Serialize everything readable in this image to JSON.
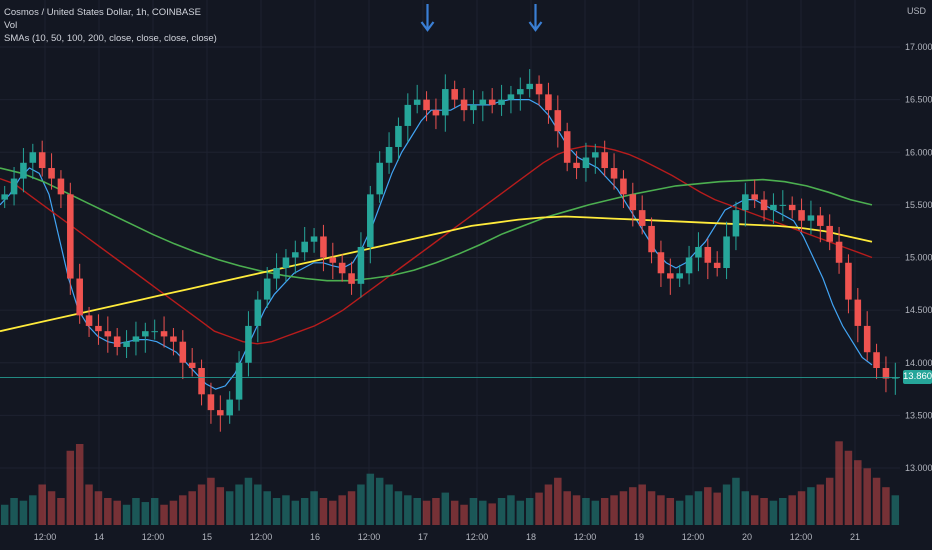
{
  "legend": {
    "symbol": "Cosmos / United States Dollar, 1h, COINBASE",
    "vol": "Vol",
    "smas": "SMAs (10, 50, 100, 200, close, close, close, close)"
  },
  "axis": {
    "currency": "USD",
    "last_price": "13.860"
  },
  "colors": {
    "background": "#131722",
    "up": "#26a69a",
    "down": "#ef5350",
    "sma10": "#42a5f5",
    "sma50": "#b71c1c",
    "sma100": "#4caf50",
    "sma200": "#ffeb3b",
    "arrow": "#3a7fd5"
  },
  "annotations": [
    {
      "type": "arrow-down",
      "x": 47.5,
      "y": 17.08
    },
    {
      "type": "arrow-down",
      "x": 59.5,
      "y": 17.08
    }
  ],
  "chart_data": {
    "type": "candlestick",
    "x_ticks": [
      {
        "x": 5,
        "label": "12:00"
      },
      {
        "x": 11,
        "label": "14"
      },
      {
        "x": 17,
        "label": "12:00"
      },
      {
        "x": 23,
        "label": "15"
      },
      {
        "x": 29,
        "label": "12:00"
      },
      {
        "x": 35,
        "label": "16"
      },
      {
        "x": 41,
        "label": "12:00"
      },
      {
        "x": 47,
        "label": "17"
      },
      {
        "x": 53,
        "label": "12:00"
      },
      {
        "x": 59,
        "label": "18"
      },
      {
        "x": 65,
        "label": "12:00"
      },
      {
        "x": 71,
        "label": "19"
      },
      {
        "x": 77,
        "label": "12:00"
      },
      {
        "x": 83,
        "label": "20"
      },
      {
        "x": 89,
        "label": "12:00"
      },
      {
        "x": 95,
        "label": "21"
      }
    ],
    "y_ticks": [
      13.0,
      13.5,
      14.0,
      14.5,
      15.0,
      15.5,
      16.0,
      16.5,
      17.0
    ],
    "ylim": [
      12.9,
      17.2
    ],
    "xlim": [
      0,
      100
    ],
    "last_price": 13.86,
    "candles_close": [
      15.6,
      15.75,
      15.9,
      16.0,
      15.85,
      15.75,
      15.6,
      14.8,
      14.45,
      14.35,
      14.3,
      14.25,
      14.15,
      14.2,
      14.25,
      14.3,
      14.3,
      14.25,
      14.2,
      14.0,
      13.95,
      13.7,
      13.55,
      13.5,
      13.65,
      14.0,
      14.35,
      14.6,
      14.8,
      14.9,
      15.0,
      15.05,
      15.15,
      15.2,
      15.0,
      14.95,
      14.85,
      14.75,
      15.1,
      15.6,
      15.9,
      16.05,
      16.25,
      16.45,
      16.5,
      16.4,
      16.35,
      16.6,
      16.5,
      16.4,
      16.45,
      16.5,
      16.45,
      16.5,
      16.55,
      16.6,
      16.65,
      16.55,
      16.4,
      16.2,
      15.9,
      15.85,
      15.95,
      16.0,
      15.85,
      15.75,
      15.6,
      15.45,
      15.3,
      15.05,
      14.85,
      14.8,
      14.85,
      15.0,
      15.1,
      14.95,
      14.9,
      15.2,
      15.45,
      15.6,
      15.55,
      15.45,
      15.5,
      15.5,
      15.45,
      15.35,
      15.4,
      15.3,
      15.15,
      14.95,
      14.6,
      14.35,
      14.1,
      13.95,
      13.85,
      13.86
    ],
    "volume_range": [
      0,
      1
    ],
    "volumes": [
      0.15,
      0.2,
      0.18,
      0.22,
      0.3,
      0.25,
      0.2,
      0.55,
      0.6,
      0.3,
      0.25,
      0.2,
      0.18,
      0.15,
      0.2,
      0.17,
      0.2,
      0.15,
      0.18,
      0.22,
      0.25,
      0.3,
      0.35,
      0.28,
      0.25,
      0.3,
      0.35,
      0.3,
      0.25,
      0.2,
      0.22,
      0.18,
      0.2,
      0.25,
      0.2,
      0.18,
      0.22,
      0.25,
      0.3,
      0.38,
      0.35,
      0.3,
      0.25,
      0.22,
      0.2,
      0.18,
      0.2,
      0.24,
      0.18,
      0.15,
      0.2,
      0.18,
      0.16,
      0.2,
      0.22,
      0.18,
      0.2,
      0.24,
      0.3,
      0.35,
      0.25,
      0.22,
      0.2,
      0.18,
      0.2,
      0.22,
      0.25,
      0.28,
      0.3,
      0.25,
      0.22,
      0.2,
      0.18,
      0.22,
      0.25,
      0.28,
      0.24,
      0.3,
      0.35,
      0.25,
      0.22,
      0.2,
      0.18,
      0.2,
      0.22,
      0.25,
      0.28,
      0.3,
      0.35,
      0.62,
      0.55,
      0.48,
      0.42,
      0.35,
      0.28,
      0.22
    ],
    "series": [
      {
        "name": "SMA 10",
        "values": [
          15.5,
          15.6,
          15.75,
          15.85,
          15.8,
          15.6,
          15.2,
          14.8,
          14.5,
          14.35,
          14.25,
          14.2,
          14.18,
          14.2,
          14.22,
          14.22,
          14.2,
          14.15,
          14.1,
          14.0,
          13.9,
          13.8,
          13.75,
          13.78,
          13.9,
          14.1,
          14.3,
          14.5,
          14.65,
          14.75,
          14.85,
          14.9,
          14.95,
          14.95,
          14.92,
          14.9,
          14.95,
          15.1,
          15.3,
          15.55,
          15.8,
          16.0,
          16.15,
          16.3,
          16.4,
          16.4,
          16.4,
          16.45,
          16.45,
          16.45,
          16.45,
          16.48,
          16.5,
          16.5,
          16.5,
          16.45,
          16.35,
          16.2,
          16.05,
          15.95,
          15.9,
          15.85,
          15.75,
          15.65,
          15.5,
          15.35,
          15.2,
          15.05,
          14.95,
          14.9,
          14.95,
          15.05,
          15.15,
          15.3,
          15.45,
          15.5,
          15.55,
          15.55,
          15.5,
          15.45,
          15.4,
          15.35,
          15.2,
          15.0,
          14.8,
          14.55,
          14.35,
          14.2,
          14.05,
          13.98
        ]
      },
      {
        "name": "SMA 50",
        "values": [
          15.75,
          15.7,
          15.6,
          15.5,
          15.4,
          15.3,
          15.2,
          15.1,
          15.0,
          14.9,
          14.8,
          14.7,
          14.6,
          14.5,
          14.4,
          14.3,
          14.25,
          14.2,
          14.18,
          14.2,
          14.25,
          14.3,
          14.35,
          14.42,
          14.5,
          14.6,
          14.7,
          14.8,
          14.9,
          15.0,
          15.1,
          15.2,
          15.3,
          15.4,
          15.5,
          15.6,
          15.7,
          15.8,
          15.9,
          15.98,
          16.03,
          16.06,
          16.05,
          16.02,
          15.98,
          15.92,
          15.85,
          15.78,
          15.7,
          15.62,
          15.55,
          15.5,
          15.45,
          15.4,
          15.35,
          15.3,
          15.25,
          15.2,
          15.15,
          15.1,
          15.05,
          15.0
        ]
      },
      {
        "name": "SMA 100",
        "values": [
          15.85,
          15.8,
          15.72,
          15.62,
          15.52,
          15.42,
          15.32,
          15.22,
          15.13,
          15.05,
          14.98,
          14.92,
          14.87,
          14.83,
          14.8,
          14.78,
          14.78,
          14.8,
          14.83,
          14.88,
          14.95,
          15.03,
          15.12,
          15.22,
          15.3,
          15.38,
          15.44,
          15.5,
          15.55,
          15.6,
          15.64,
          15.68,
          15.7,
          15.72,
          15.73,
          15.74,
          15.72,
          15.68,
          15.62,
          15.55,
          15.5
        ]
      },
      {
        "name": "SMA 200",
        "values": [
          14.3,
          14.35,
          14.4,
          14.45,
          14.5,
          14.55,
          14.6,
          14.65,
          14.7,
          14.75,
          14.8,
          14.85,
          14.9,
          14.95,
          15.0,
          15.05,
          15.1,
          15.15,
          15.2,
          15.25,
          15.3,
          15.33,
          15.36,
          15.38,
          15.39,
          15.38,
          15.37,
          15.36,
          15.35,
          15.34,
          15.33,
          15.32,
          15.31,
          15.3,
          15.28,
          15.25,
          15.2,
          15.15
        ]
      }
    ]
  }
}
